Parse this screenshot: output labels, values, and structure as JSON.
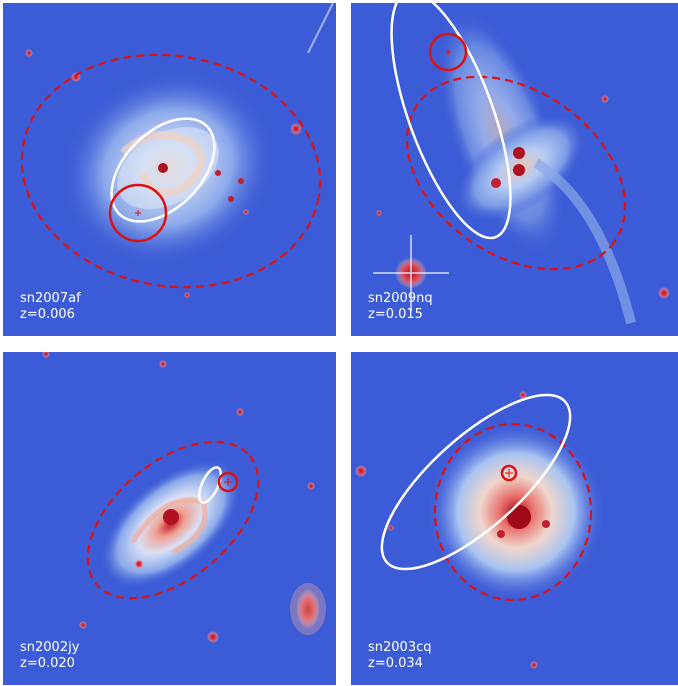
{
  "panels": [
    {
      "name": "sn2007af",
      "z": "z=0.006"
    },
    {
      "name": "sn2009nq",
      "z": "z=0.015"
    },
    {
      "name": "sn2002jy",
      "z": "z=0.020"
    },
    {
      "name": "sn2003cq",
      "z": "z=0.034"
    }
  ],
  "colors": {
    "background": "#3c5bd6",
    "galaxy_glow": "#a9c4f2",
    "galaxy_core": "#b01020",
    "dashed_ellipse": "#dd1111",
    "supernova_circle": "#dd1111",
    "white_ellipse": "#ffffff"
  },
  "colormap": "coolwarm"
}
